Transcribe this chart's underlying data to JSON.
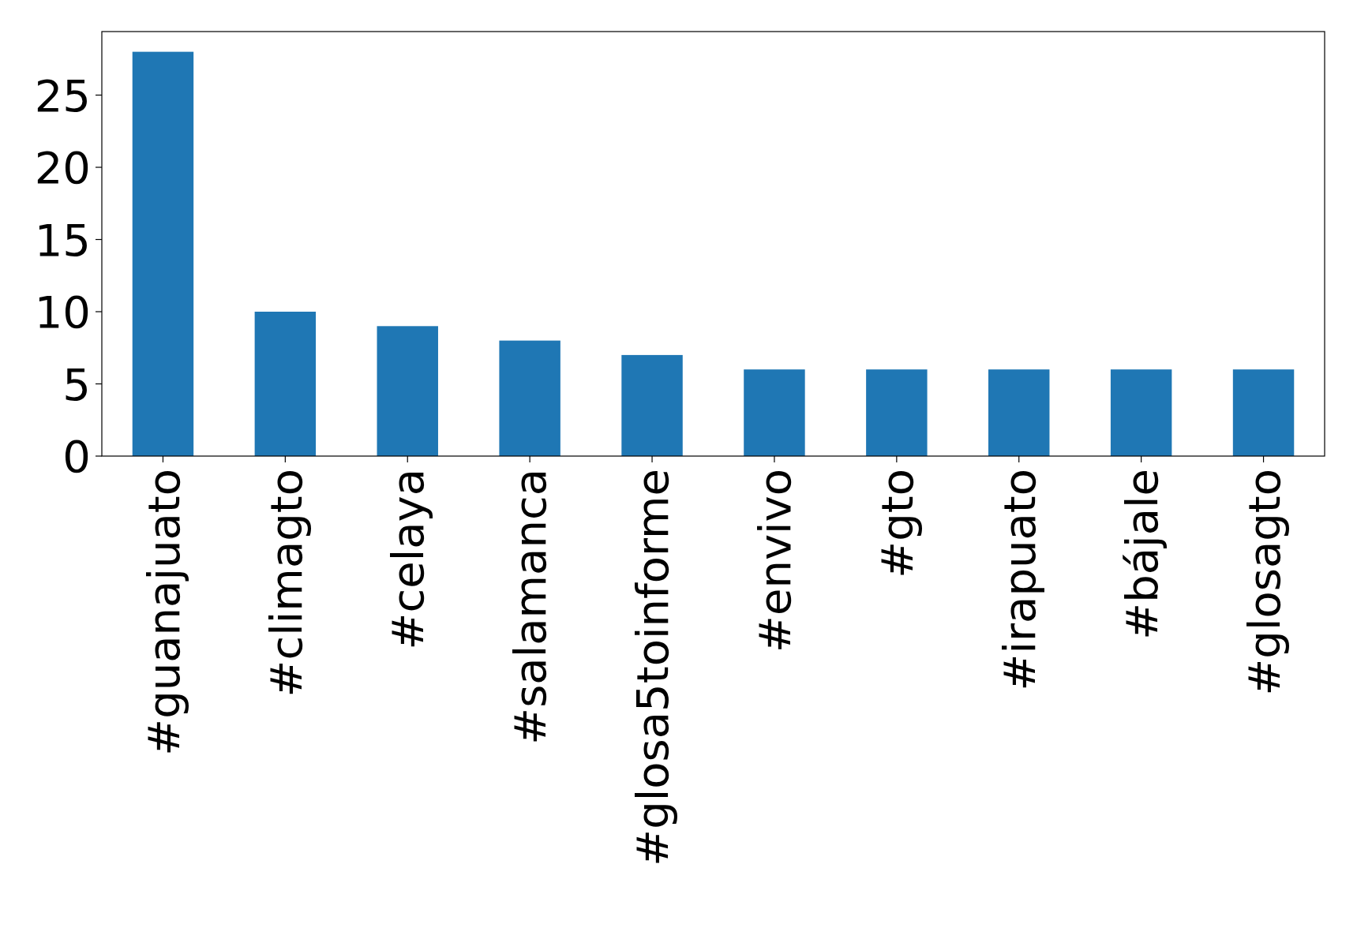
{
  "chart_data": {
    "type": "bar",
    "categories": [
      "#guanajuato",
      "#climagto",
      "#celaya",
      "#salamanca",
      "#glosa5toinforme",
      "#envivo",
      "#gto",
      "#irapuato",
      "#bájale",
      "#glosagto"
    ],
    "values": [
      28,
      10,
      9,
      8,
      7,
      6,
      6,
      6,
      6,
      6
    ],
    "color": "#1f77b4",
    "ylim": [
      0,
      29.4
    ],
    "yticks": [
      0,
      5,
      10,
      15,
      20,
      25
    ],
    "grid": false
  }
}
